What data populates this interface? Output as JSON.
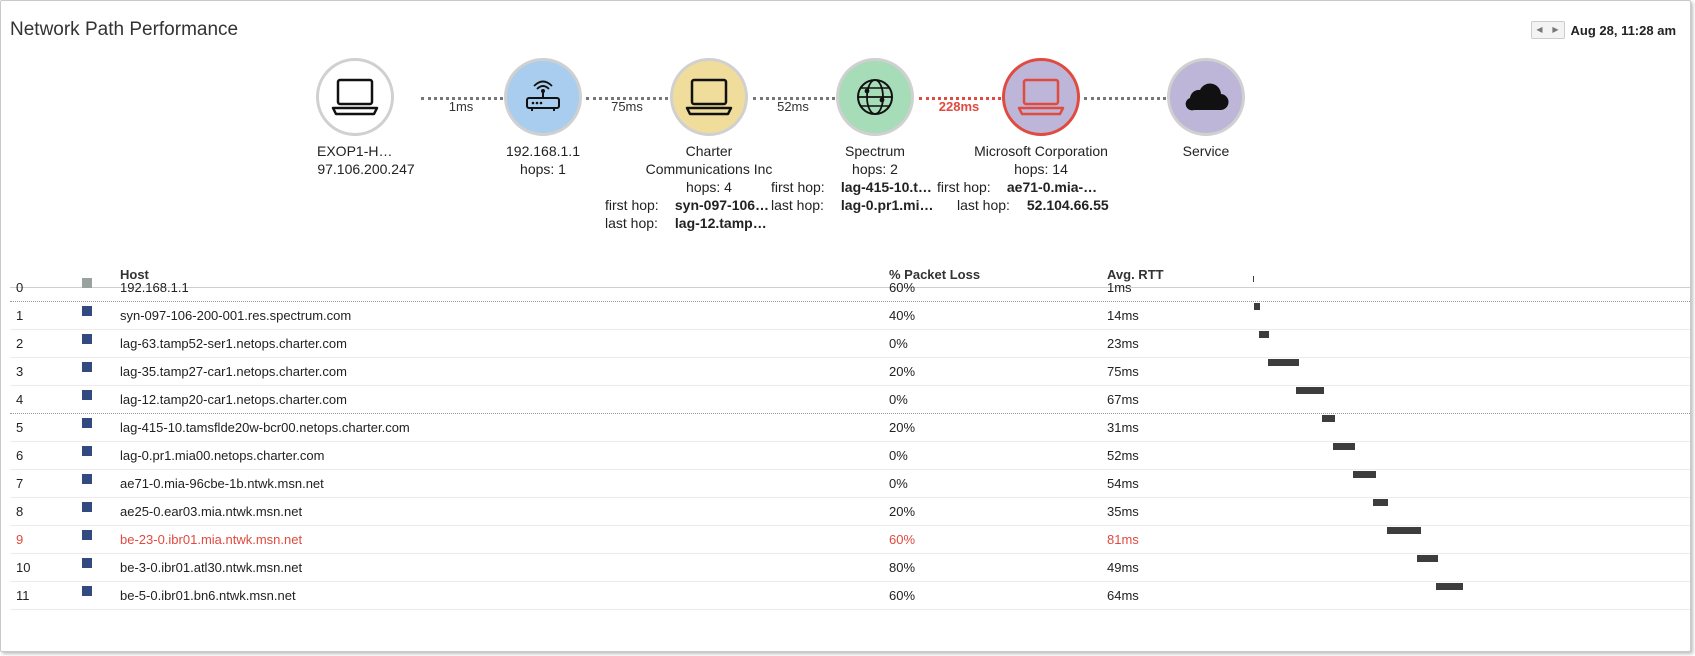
{
  "title": "Network Path Performance",
  "date": {
    "prev_icon": "◀",
    "next_icon": "▶",
    "label": "Aug 28, 11:28 am"
  },
  "colors": {
    "alert": "#e04a3f",
    "row_marker": "#334a80",
    "rtt_bar": "#3d3d3d"
  },
  "nodes": [
    {
      "icon": "laptop-icon",
      "line1": "EXOP1-H…",
      "line2": "97.106.200.247"
    },
    {
      "icon": "router-icon",
      "line1": "192.168.1.1",
      "line2": "hops: 1"
    },
    {
      "icon": "laptop-icon",
      "line1": "Charter",
      "line2": "Communications Inc",
      "line3": "hops: 4",
      "first_hop_label": "first hop:",
      "first_hop": "syn-097-106…",
      "last_hop_label": "last hop:",
      "last_hop": "lag-12.tamp…"
    },
    {
      "icon": "globe-icon",
      "line1": "Spectrum",
      "line2": "hops: 2",
      "first_hop_label": "first hop:",
      "first_hop": "lag-415-10.t…",
      "last_hop_label": "last hop:",
      "last_hop": "lag-0.pr1.mi…"
    },
    {
      "icon": "laptop-icon",
      "line1": "Microsoft Corporation",
      "line2": "hops: 14",
      "first_hop_label": "first hop:",
      "first_hop": "ae71-0.mia-…",
      "last_hop_label": "last hop:",
      "last_hop": "52.104.66.55"
    },
    {
      "icon": "cloud-icon",
      "line1": "Service"
    }
  ],
  "links": [
    "1ms",
    "75ms",
    "52ms",
    "228ms",
    ""
  ],
  "table": {
    "headers": {
      "host": "Host",
      "loss": "% Packet Loss",
      "rtt": "Avg. RTT"
    },
    "rows": [
      {
        "idx": "0",
        "host": "192.168.1.1",
        "loss": "60%",
        "rtt": "1ms"
      },
      {
        "idx": "1",
        "host": "syn-097-106-200-001.res.spectrum.com",
        "loss": "40%",
        "rtt": "14ms"
      },
      {
        "idx": "2",
        "host": "lag-63.tamp52-ser1.netops.charter.com",
        "loss": "0%",
        "rtt": "23ms"
      },
      {
        "idx": "3",
        "host": "lag-35.tamp27-car1.netops.charter.com",
        "loss": "20%",
        "rtt": "75ms"
      },
      {
        "idx": "4",
        "host": "lag-12.tamp20-car1.netops.charter.com",
        "loss": "0%",
        "rtt": "67ms"
      },
      {
        "idx": "5",
        "host": "lag-415-10.tamsflde20w-bcr00.netops.charter.com",
        "loss": "20%",
        "rtt": "31ms"
      },
      {
        "idx": "6",
        "host": "lag-0.pr1.mia00.netops.charter.com",
        "loss": "0%",
        "rtt": "52ms"
      },
      {
        "idx": "7",
        "host": "ae71-0.mia-96cbe-1b.ntwk.msn.net",
        "loss": "0%",
        "rtt": "54ms"
      },
      {
        "idx": "8",
        "host": "ae25-0.ear03.mia.ntwk.msn.net",
        "loss": "20%",
        "rtt": "35ms"
      },
      {
        "idx": "9",
        "host": "be-23-0.ibr01.mia.ntwk.msn.net",
        "loss": "60%",
        "rtt": "81ms"
      },
      {
        "idx": "10",
        "host": "be-3-0.ibr01.atl30.ntwk.msn.net",
        "loss": "80%",
        "rtt": "49ms"
      },
      {
        "idx": "11",
        "host": "be-5-0.ibr01.bn6.ntwk.msn.net",
        "loss": "60%",
        "rtt": "64ms"
      }
    ]
  }
}
